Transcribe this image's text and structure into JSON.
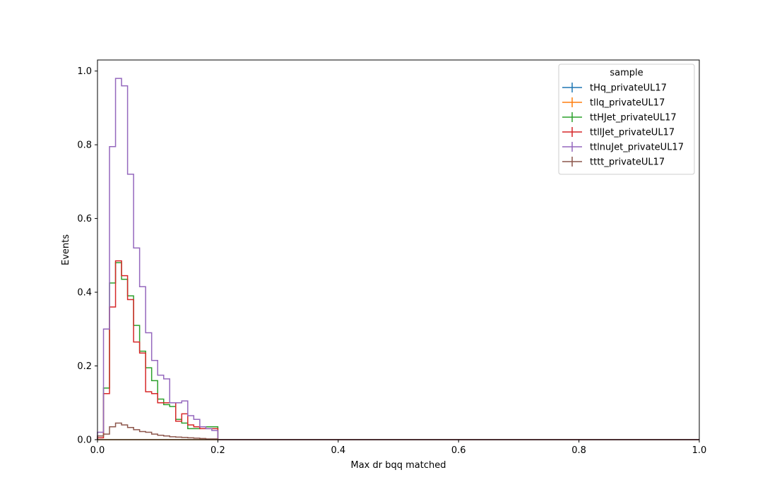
{
  "chart_data": {
    "type": "line",
    "title": "",
    "xlabel": "Max dr bqq matched",
    "ylabel": "Events",
    "xlim": [
      0,
      1
    ],
    "ylim": [
      0,
      1.03
    ],
    "xticks": [
      0.0,
      0.2,
      0.4,
      0.6,
      0.8,
      1.0
    ],
    "xtick_labels": [
      "0.0",
      "0.2",
      "0.4",
      "0.6",
      "0.8",
      "1.0"
    ],
    "yticks": [
      0.0,
      0.2,
      0.4,
      0.6,
      0.8,
      1.0
    ],
    "ytick_labels": [
      "0.0",
      "0.2",
      "0.4",
      "0.6",
      "0.8",
      "1.0"
    ],
    "grid": false,
    "legend": {
      "title": "sample",
      "placement": "top-right"
    },
    "bin_edges": [
      0.0,
      0.01,
      0.02,
      0.03,
      0.04,
      0.05,
      0.06,
      0.07,
      0.08,
      0.09,
      0.1,
      0.11,
      0.12,
      0.13,
      0.14,
      0.15,
      0.16,
      0.17,
      0.18,
      0.19,
      0.2
    ],
    "series": [
      {
        "name": "tHq_privateUL17",
        "color": "#1f77b4",
        "values": [
          0,
          0,
          0,
          0,
          0,
          0,
          0,
          0,
          0,
          0,
          0,
          0,
          0,
          0,
          0,
          0,
          0,
          0,
          0,
          0
        ]
      },
      {
        "name": "tllq_privateUL17",
        "color": "#ff7f0e",
        "values": [
          0,
          0,
          0,
          0,
          0,
          0,
          0,
          0,
          0,
          0,
          0,
          0,
          0,
          0,
          0,
          0,
          0,
          0,
          0,
          0
        ]
      },
      {
        "name": "ttHJet_privateUL17",
        "color": "#2ca02c",
        "values": [
          0.01,
          0.14,
          0.425,
          0.48,
          0.435,
          0.39,
          0.31,
          0.24,
          0.195,
          0.16,
          0.11,
          0.095,
          0.09,
          0.055,
          0.045,
          0.03,
          0.03,
          0.035,
          0.035,
          0.035
        ]
      },
      {
        "name": "ttllJet_privateUL17",
        "color": "#d62728",
        "values": [
          0.005,
          0.125,
          0.36,
          0.485,
          0.445,
          0.38,
          0.265,
          0.235,
          0.13,
          0.125,
          0.1,
          0.1,
          0.1,
          0.05,
          0.07,
          0.04,
          0.035,
          0.03,
          0.03,
          0.03
        ]
      },
      {
        "name": "ttlnuJet_privateUL17",
        "color": "#9467bd",
        "values": [
          0.02,
          0.3,
          0.795,
          0.98,
          0.96,
          0.72,
          0.52,
          0.415,
          0.29,
          0.215,
          0.175,
          0.165,
          0.1,
          0.1,
          0.105,
          0.065,
          0.055,
          0.035,
          0.03,
          0.025
        ]
      },
      {
        "name": "tttt_privateUL17",
        "color": "#8c564b",
        "values": [
          0.01,
          0.015,
          0.035,
          0.045,
          0.04,
          0.033,
          0.027,
          0.022,
          0.02,
          0.015,
          0.012,
          0.01,
          0.008,
          0.007,
          0.006,
          0.005,
          0.004,
          0.003,
          0.002,
          0.002
        ]
      }
    ]
  }
}
